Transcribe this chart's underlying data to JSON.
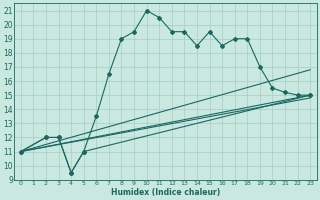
{
  "xlabel": "Humidex (Indice chaleur)",
  "bg_color": "#c8e8e0",
  "grid_color": "#a8ccc8",
  "line_color": "#1a6860",
  "xlim": [
    -0.5,
    23.5
  ],
  "ylim": [
    9,
    21.5
  ],
  "xticks": [
    0,
    1,
    2,
    3,
    4,
    5,
    6,
    7,
    8,
    9,
    10,
    11,
    12,
    13,
    14,
    15,
    16,
    17,
    18,
    19,
    20,
    21,
    22,
    23
  ],
  "yticks": [
    9,
    10,
    11,
    12,
    13,
    14,
    15,
    16,
    17,
    18,
    19,
    20,
    21
  ],
  "series1_x": [
    0,
    2,
    3,
    4,
    5,
    6,
    7,
    8,
    9,
    10,
    11,
    12,
    13,
    14,
    15,
    16,
    17,
    18,
    19,
    20,
    21,
    22,
    23
  ],
  "series1_y": [
    11,
    12,
    12,
    9.5,
    11,
    13.5,
    16.5,
    19,
    19.5,
    21,
    20.5,
    19.5,
    19.5,
    18.5,
    19.5,
    18.5,
    19,
    19,
    17,
    15.5,
    15.2,
    15,
    15
  ],
  "series2_x": [
    0,
    2,
    3,
    4,
    5,
    23
  ],
  "series2_y": [
    11,
    12,
    12,
    9.5,
    11,
    15
  ],
  "series3_x": [
    0,
    23
  ],
  "series3_y": [
    11,
    15
  ],
  "series4_x": [
    0,
    23
  ],
  "series4_y": [
    11,
    14.8
  ],
  "series5_x": [
    0,
    23
  ],
  "series5_y": [
    11,
    16.8
  ],
  "lw": 0.8,
  "ms": 2.0
}
